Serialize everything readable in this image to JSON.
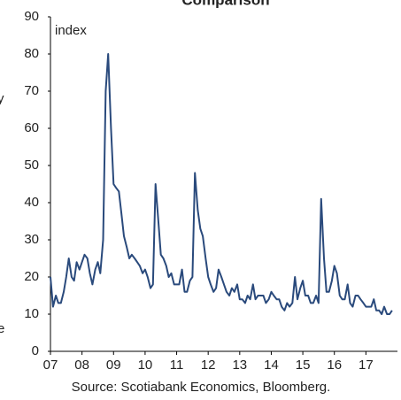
{
  "chart_data": {
    "type": "line",
    "title": "Comparison",
    "y_label": "index",
    "source": "Source: Scotiabank Economics, Bloomberg.",
    "side_text": [
      "y",
      "e"
    ],
    "x": [
      2007.0,
      2007.08,
      2007.17,
      2007.25,
      2007.33,
      2007.42,
      2007.5,
      2007.58,
      2007.67,
      2007.75,
      2007.83,
      2007.92,
      2008.0,
      2008.08,
      2008.17,
      2008.25,
      2008.33,
      2008.42,
      2008.5,
      2008.58,
      2008.67,
      2008.75,
      2008.83,
      2008.92,
      2009.0,
      2009.08,
      2009.17,
      2009.25,
      2009.33,
      2009.42,
      2009.5,
      2009.58,
      2009.67,
      2009.75,
      2009.83,
      2009.92,
      2010.0,
      2010.08,
      2010.17,
      2010.25,
      2010.33,
      2010.42,
      2010.5,
      2010.58,
      2010.67,
      2010.75,
      2010.83,
      2010.92,
      2011.0,
      2011.08,
      2011.17,
      2011.25,
      2011.33,
      2011.42,
      2011.5,
      2011.58,
      2011.67,
      2011.75,
      2011.83,
      2011.92,
      2012.0,
      2012.08,
      2012.17,
      2012.25,
      2012.33,
      2012.42,
      2012.5,
      2012.58,
      2012.67,
      2012.75,
      2012.83,
      2012.92,
      2013.0,
      2013.08,
      2013.17,
      2013.25,
      2013.33,
      2013.42,
      2013.5,
      2013.58,
      2013.67,
      2013.75,
      2013.83,
      2013.92,
      2014.0,
      2014.08,
      2014.17,
      2014.25,
      2014.33,
      2014.42,
      2014.5,
      2014.58,
      2014.67,
      2014.75,
      2014.83,
      2014.92,
      2015.0,
      2015.08,
      2015.17,
      2015.25,
      2015.33,
      2015.42,
      2015.5,
      2015.58,
      2015.67,
      2015.75,
      2015.83,
      2015.92,
      2016.0,
      2016.08,
      2016.17,
      2016.25,
      2016.33,
      2016.42,
      2016.5,
      2016.58,
      2016.67,
      2016.75,
      2016.83,
      2016.92,
      2017.0,
      2017.08,
      2017.17,
      2017.25,
      2017.33,
      2017.42,
      2017.5,
      2017.58,
      2017.67,
      2017.75,
      2017.83
    ],
    "series": [
      {
        "name": "index",
        "color": "#2a4a7c",
        "values": [
          20,
          12,
          15,
          13,
          13,
          16,
          20,
          25,
          20,
          19,
          24,
          22,
          24,
          26,
          25,
          21,
          18,
          22,
          24,
          21,
          30,
          70,
          80,
          60,
          45,
          44,
          43,
          37,
          31,
          28,
          25,
          26,
          25,
          24,
          23,
          21,
          22,
          20,
          17,
          18,
          45,
          35,
          26,
          25,
          23,
          20,
          21,
          18,
          18,
          18,
          22,
          16,
          16,
          19,
          20,
          48,
          38,
          33,
          31,
          25,
          20,
          18,
          16,
          17,
          22,
          20,
          18,
          16,
          15,
          17,
          16,
          18,
          14,
          14,
          13,
          15,
          14,
          18,
          14,
          15,
          15,
          15,
          13,
          14,
          16,
          15,
          14,
          14,
          12,
          11,
          13,
          12,
          13,
          20,
          14,
          17,
          19,
          15,
          15,
          13,
          13,
          15,
          13,
          41,
          25,
          16,
          16,
          19,
          23,
          21,
          15,
          14,
          14,
          18,
          13,
          12,
          15,
          15,
          14,
          13,
          12,
          12,
          12,
          14,
          11,
          11,
          10,
          12,
          10,
          10,
          11
        ]
      }
    ],
    "xlim": [
      2007,
      2018
    ],
    "xticks": [
      {
        "value": 2007,
        "label": "07"
      },
      {
        "value": 2008,
        "label": "08"
      },
      {
        "value": 2009,
        "label": "09"
      },
      {
        "value": 2010,
        "label": "10"
      },
      {
        "value": 2011,
        "label": "11"
      },
      {
        "value": 2012,
        "label": "12"
      },
      {
        "value": 2013,
        "label": "13"
      },
      {
        "value": 2014,
        "label": "14"
      },
      {
        "value": 2015,
        "label": "15"
      },
      {
        "value": 2016,
        "label": "16"
      },
      {
        "value": 2017,
        "label": "17"
      }
    ],
    "ylim": [
      0,
      90
    ],
    "yticks": [
      0,
      10,
      20,
      30,
      40,
      50,
      60,
      70,
      80,
      90
    ],
    "grid": false
  }
}
